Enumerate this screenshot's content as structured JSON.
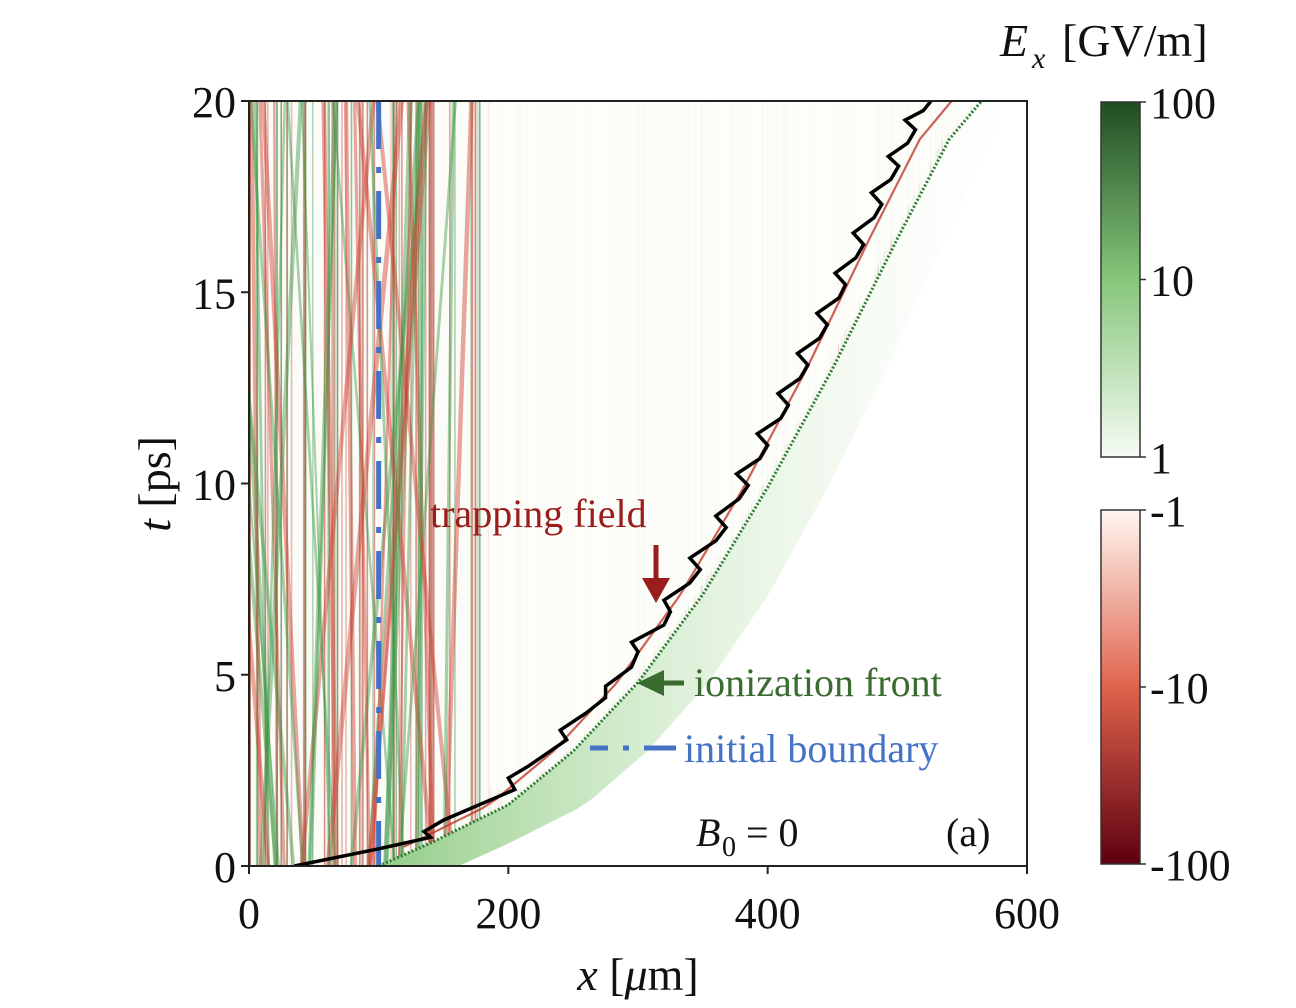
{
  "chart_data": {
    "type": "heatmap",
    "title": "",
    "panel_label": "(a)",
    "parameter_label": "B₀ = 0",
    "xlabel": "x [μm]",
    "ylabel": "t [ps]",
    "xlim": [
      0,
      600
    ],
    "ylim": [
      0,
      20
    ],
    "xticks": [
      0,
      200,
      400,
      600
    ],
    "yticks": [
      0,
      5,
      10,
      15,
      20
    ],
    "xtick_labels": [
      "0",
      "200",
      "400",
      "600"
    ],
    "ytick_labels": [
      "0",
      "5",
      "10",
      "15",
      "20"
    ],
    "grid": false,
    "colorbar": {
      "label": "Eₓ [GV/m]",
      "label_main": "E",
      "label_sub": "x",
      "label_unit": "[GV/m]",
      "scale": "symlog",
      "positive": {
        "ticks": [
          1,
          10,
          100
        ],
        "tick_labels": [
          "1",
          "10",
          "100"
        ],
        "colormap": "Greens",
        "colors": [
          "#f7fcf5",
          "#74c476",
          "#00441b"
        ]
      },
      "negative": {
        "ticks": [
          -1,
          -10,
          -100
        ],
        "tick_labels": [
          "-1",
          "-10",
          "-100"
        ],
        "colormap": "Reds",
        "colors": [
          "#fff5f0",
          "#e05a44",
          "#67000d"
        ]
      }
    },
    "initial_boundary": {
      "x": 100,
      "style": "dash-dot",
      "color": "#4472c4"
    },
    "ionization_front": {
      "color": "#2e7d32",
      "x": [
        100,
        140,
        200,
        250,
        300,
        350,
        400,
        450,
        500,
        540,
        565
      ],
      "t": [
        0,
        0.6,
        1.6,
        3.0,
        4.8,
        7.1,
        9.9,
        13.0,
        16.4,
        19.0,
        20
      ]
    },
    "trajectory": {
      "color": "#000000",
      "x": [
        35,
        100,
        140,
        135,
        150,
        205,
        200,
        215,
        245,
        240,
        260,
        275,
        275,
        295,
        300,
        295,
        320,
        325,
        320,
        340,
        348,
        340,
        360,
        368,
        360,
        378,
        385,
        376,
        394,
        400,
        392,
        410,
        416,
        408,
        425,
        431,
        423,
        440,
        446,
        438,
        455,
        460,
        452,
        468,
        474,
        466,
        482,
        488,
        480,
        495,
        501,
        493,
        508,
        514,
        506,
        520,
        526,
        518,
        532,
        538,
        530,
        545,
        552,
        545,
        558
      ],
      "t": [
        0,
        0.45,
        0.75,
        0.9,
        1.2,
        2.0,
        2.3,
        2.6,
        3.3,
        3.55,
        4.0,
        4.4,
        4.7,
        5.2,
        5.6,
        5.85,
        6.3,
        6.65,
        6.95,
        7.4,
        7.75,
        8.05,
        8.5,
        8.85,
        9.15,
        9.6,
        9.95,
        10.25,
        10.65,
        11.0,
        11.3,
        11.7,
        12.05,
        12.35,
        12.75,
        13.1,
        13.4,
        13.8,
        14.15,
        14.45,
        14.85,
        15.2,
        15.5,
        15.9,
        16.25,
        16.55,
        16.95,
        17.3,
        17.6,
        17.95,
        18.3,
        18.55,
        18.9,
        19.25,
        19.5,
        19.75,
        20.0,
        20.0,
        20.0,
        20.0,
        20.0,
        20.0,
        20.0,
        20.0,
        20.0
      ]
    },
    "annotations": [
      {
        "text": "trapping field",
        "color": "#9b1c1c",
        "arrow": "down",
        "points_to": {
          "x": 306,
          "t": 6.8
        }
      },
      {
        "text": "ionization front",
        "color": "#3a6b30",
        "arrow": "left",
        "points_to": {
          "x": 292,
          "t": 4.8
        }
      },
      {
        "text": "initial boundary",
        "color": "#4472c4",
        "legend_line": "dash-dot"
      }
    ]
  }
}
